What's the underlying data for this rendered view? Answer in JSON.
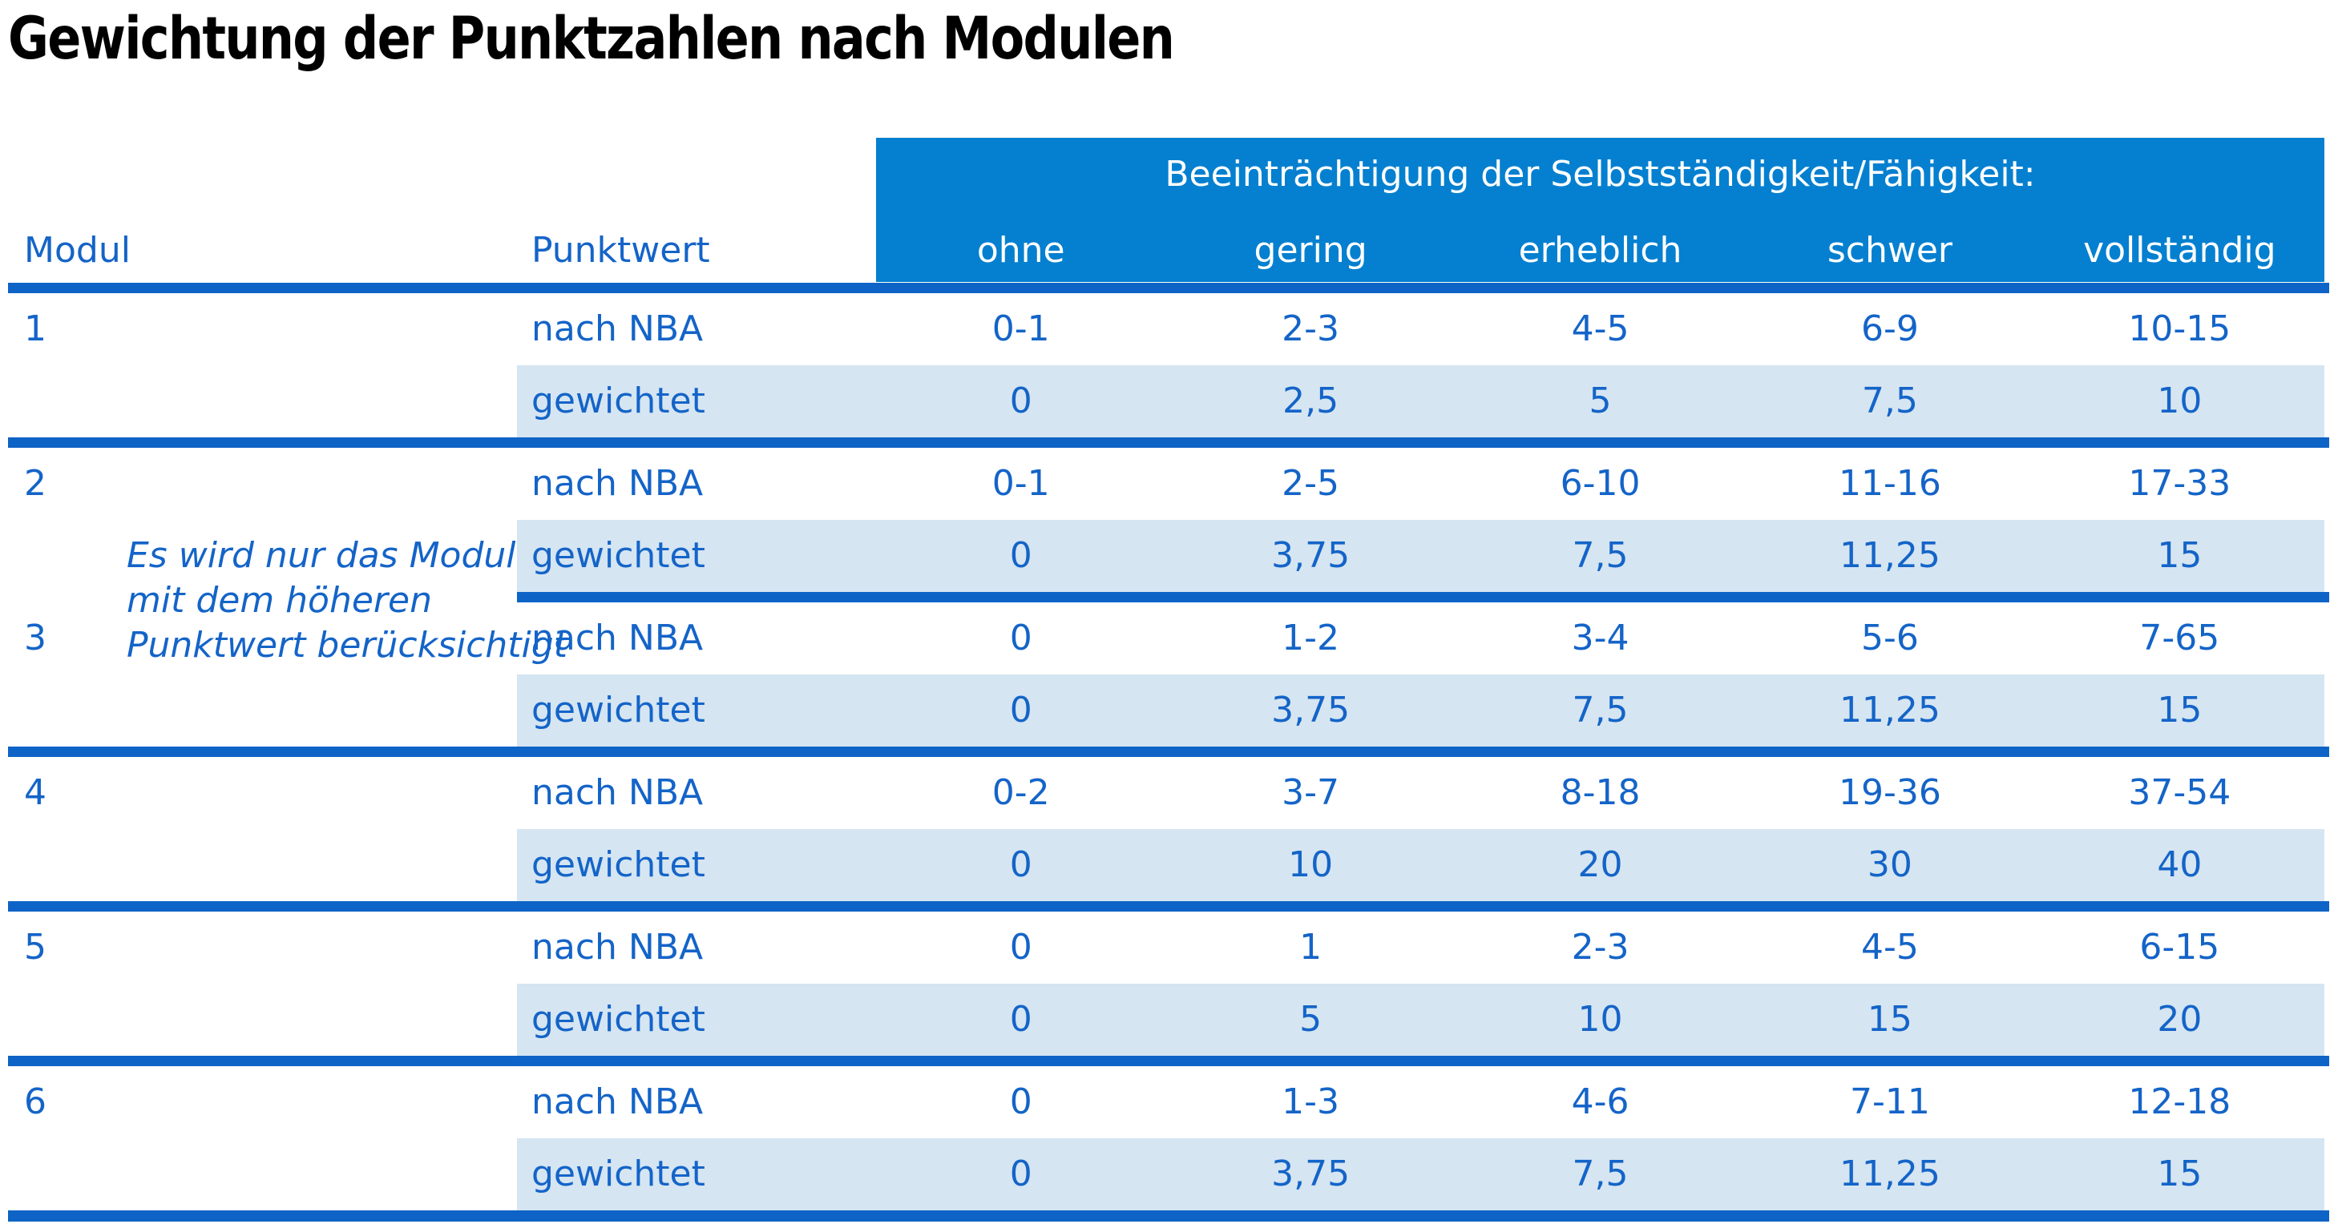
{
  "title": "Gewichtung der Punktzahlen nach Modulen",
  "colors": {
    "header_bg": "#0580d0",
    "row_alt_bg": "#d5e5f2",
    "separator_line": "#0e63c6",
    "text_blue": "#1464c8",
    "header_text": "#ffffff",
    "title_text": "#000000"
  },
  "table": {
    "col_modul": "Modul",
    "col_punktwert": "Punktwert",
    "group_header": "Beeinträchtigung der Selbstständigkeit/Fähigkeit:",
    "severity_cols": [
      "ohne",
      "gering",
      "erheblich",
      "schwer",
      "vollständig"
    ],
    "row_label_nba": "nach NBA",
    "row_label_weighted": "gewichtet",
    "note": {
      "line1": "Es wird nur das Modul",
      "line2": "mit dem höheren",
      "line3": "Punktwert berücksichtigt"
    },
    "modules": [
      {
        "id": "1",
        "nba": [
          "0-1",
          "2-3",
          "4-5",
          "6-9",
          "10-15"
        ],
        "gewichtet": [
          "0",
          "2,5",
          "5",
          "7,5",
          "10"
        ]
      },
      {
        "id": "2",
        "nba": [
          "0-1",
          "2-5",
          "6-10",
          "11-16",
          "17-33"
        ],
        "gewichtet": [
          "0",
          "3,75",
          "7,5",
          "11,25",
          "15"
        ]
      },
      {
        "id": "3",
        "nba": [
          "0",
          "1-2",
          "3-4",
          "5-6",
          "7-65"
        ],
        "gewichtet": [
          "0",
          "3,75",
          "7,5",
          "11,25",
          "15"
        ]
      },
      {
        "id": "4",
        "nba": [
          "0-2",
          "3-7",
          "8-18",
          "19-36",
          "37-54"
        ],
        "gewichtet": [
          "0",
          "10",
          "20",
          "30",
          "40"
        ]
      },
      {
        "id": "5",
        "nba": [
          "0",
          "1",
          "2-3",
          "4-5",
          "6-15"
        ],
        "gewichtet": [
          "0",
          "5",
          "10",
          "15",
          "20"
        ]
      },
      {
        "id": "6",
        "nba": [
          "0",
          "1-3",
          "4-6",
          "7-11",
          "12-18"
        ],
        "gewichtet": [
          "0",
          "3,75",
          "7,5",
          "11,25",
          "15"
        ]
      }
    ]
  }
}
